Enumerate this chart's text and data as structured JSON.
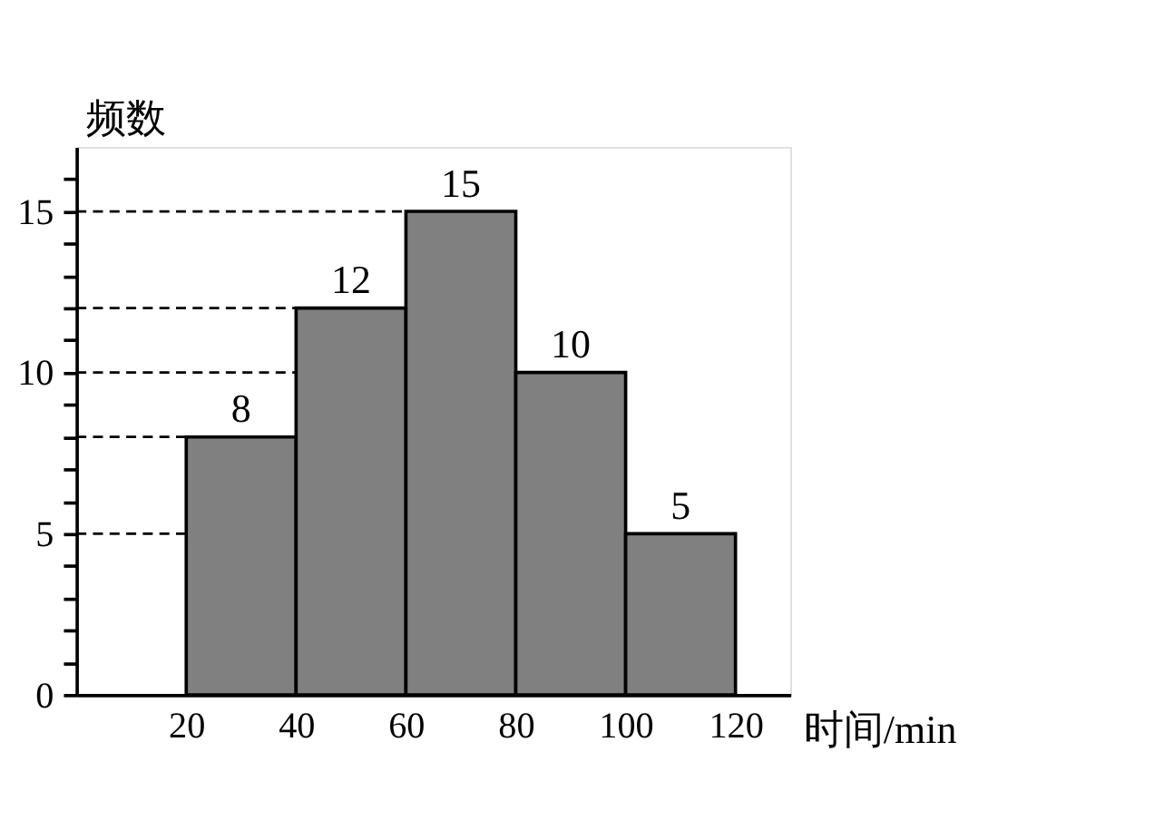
{
  "chart_data": {
    "type": "histogram",
    "xlabel": "时间/min",
    "ylabel": "频数",
    "bins": [
      20,
      40,
      60,
      80,
      100,
      120
    ],
    "values": [
      8,
      12,
      15,
      10,
      5
    ],
    "color": "#808080",
    "xlim": [
      0,
      130
    ],
    "xticks": [
      20,
      40,
      60,
      80,
      100,
      120
    ],
    "ylim": [
      0,
      17
    ],
    "yticks": [
      0,
      {
        "value": 1,
        "label": null
      },
      {
        "value": 2,
        "label": null
      },
      {
        "value": 3,
        "label": null
      },
      {
        "value": 4,
        "label": null
      },
      5,
      {
        "value": 6,
        "label": null
      },
      {
        "value": 7,
        "label": null
      },
      {
        "value": 8,
        "label": null
      },
      {
        "value": 9,
        "label": null
      },
      10,
      {
        "value": 11,
        "label": null
      },
      {
        "value": 12,
        "label": null
      },
      {
        "value": 13,
        "label": null
      },
      {
        "value": 14,
        "label": null
      },
      15,
      {
        "value": 16,
        "label": null
      }
    ],
    "ref_lines": [
      {
        "axis": "y",
        "value": 15,
        "line_style": "dashed"
      },
      {
        "axis": "y",
        "value": 12,
        "line_style": "dashed"
      },
      {
        "axis": "y",
        "value": 10,
        "line_style": "dashed"
      },
      {
        "axis": "y",
        "value": 8,
        "line_style": "dashed"
      },
      {
        "axis": "y",
        "value": 5,
        "line_style": "dashed"
      }
    ],
    "data_labels": true,
    "grid": false
  }
}
